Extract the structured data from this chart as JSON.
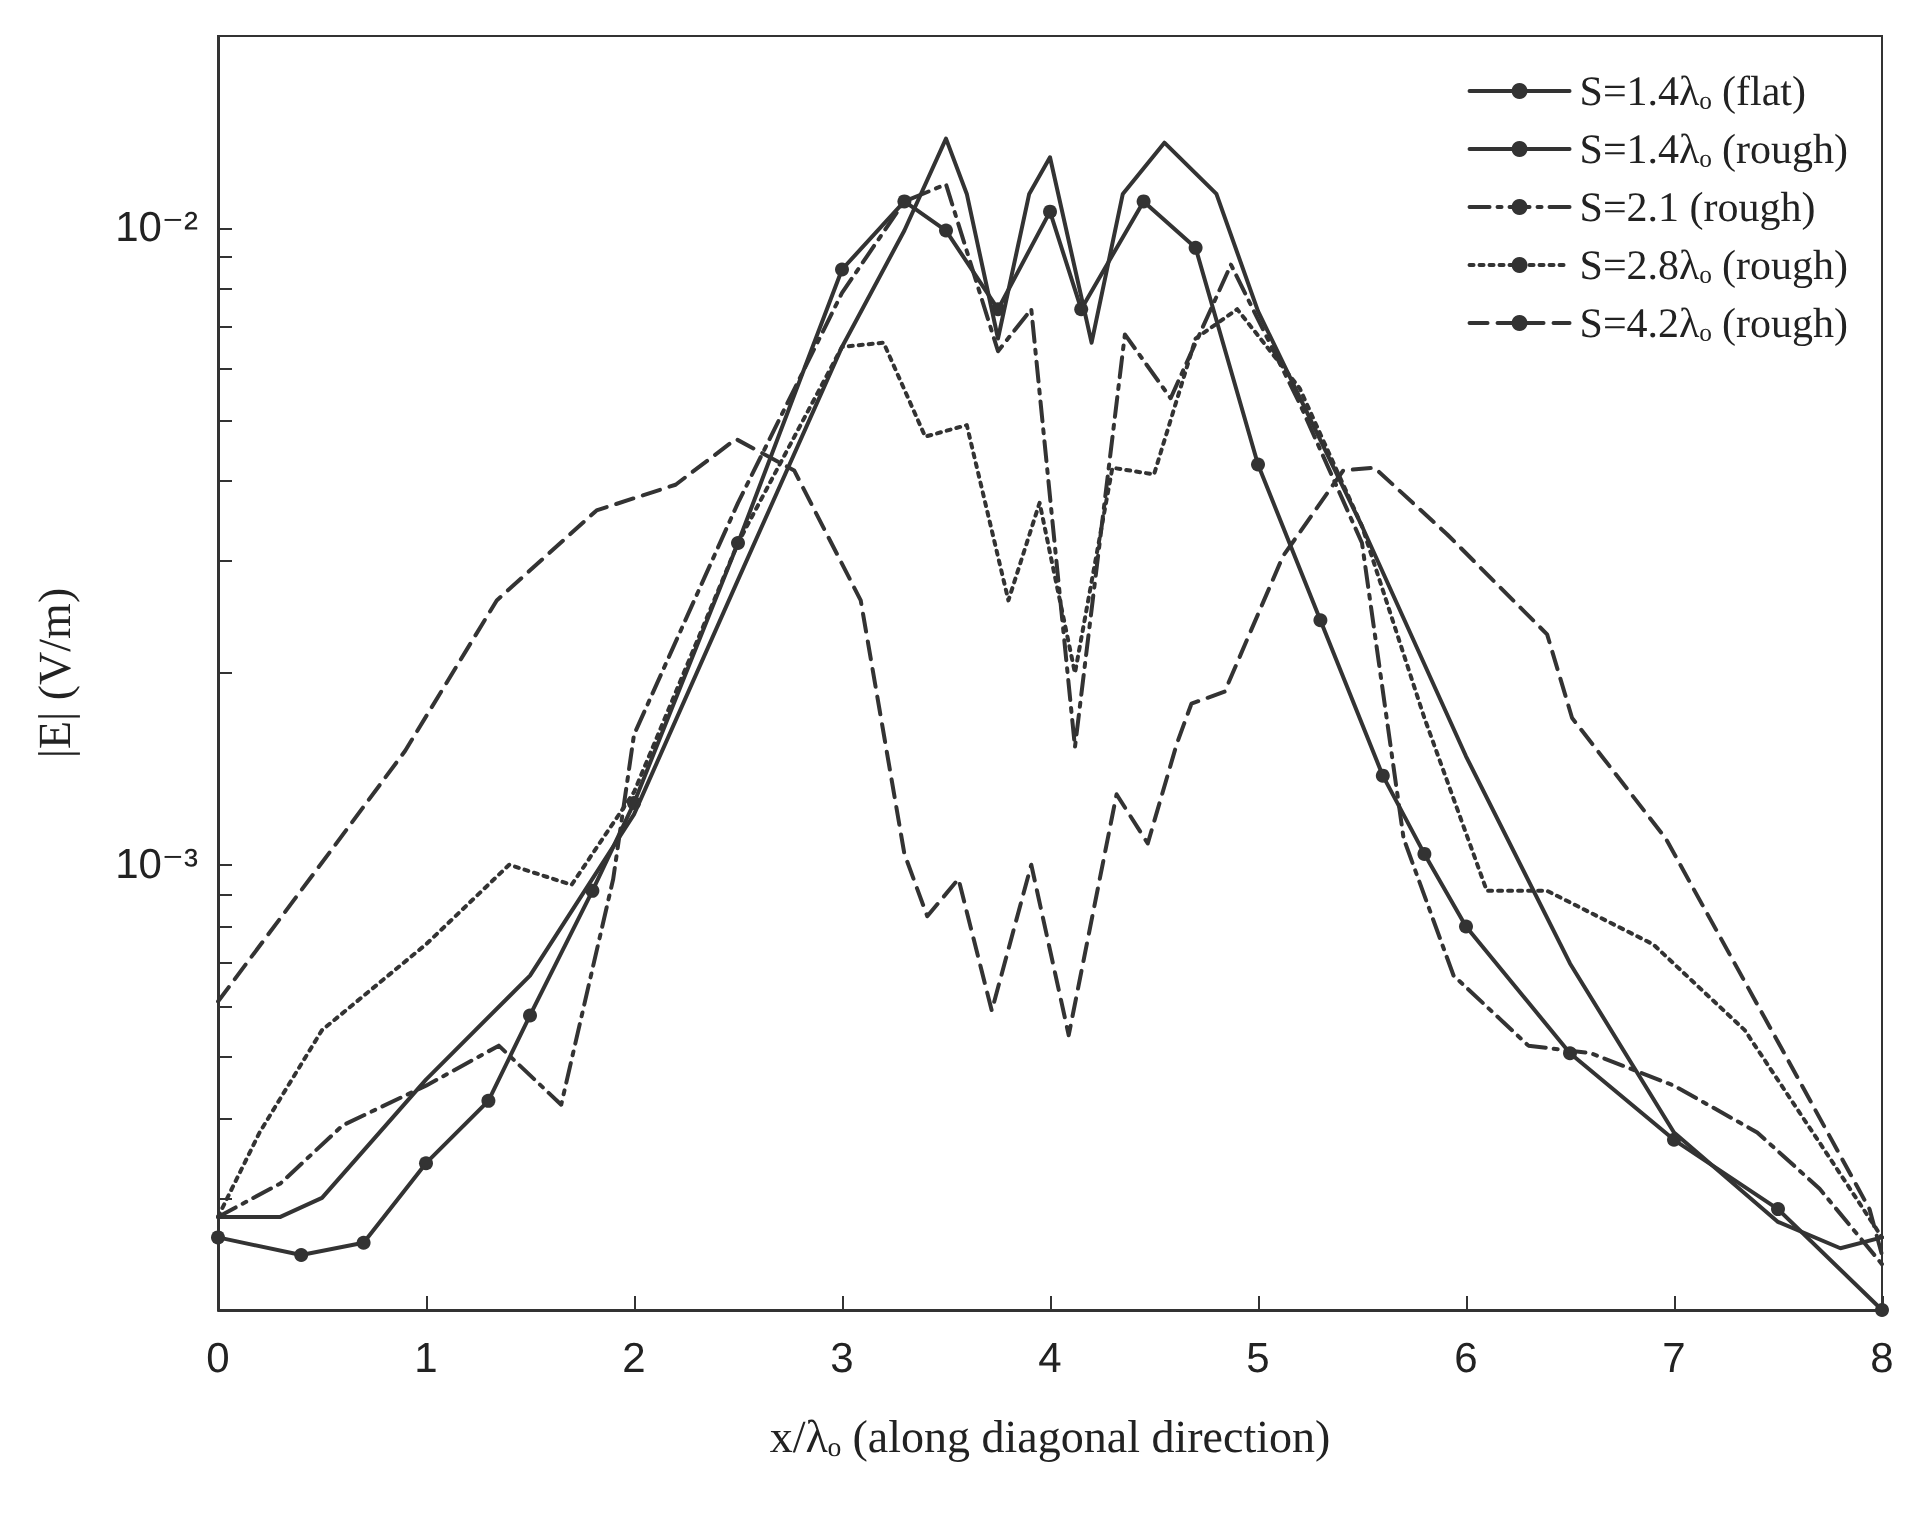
{
  "chart_data": {
    "type": "line",
    "xlabel": "x/λₒ (along diagonal direction)",
    "ylabel": "|E| (V/m)",
    "log": "y",
    "xlim": [
      0,
      8
    ],
    "xticks": [
      0,
      1,
      2,
      3,
      4,
      5,
      6,
      7,
      8
    ],
    "ylim": [
      0.0002,
      0.02
    ],
    "yticks": [
      {
        "value": 0.0002,
        "label": null
      },
      {
        "value": 0.0003,
        "label": null
      },
      {
        "value": 0.0004,
        "label": null
      },
      {
        "value": 0.0005,
        "label": null
      },
      {
        "value": 0.0006,
        "label": null
      },
      {
        "value": 0.0007,
        "label": null
      },
      {
        "value": 0.0008,
        "label": null
      },
      {
        "value": 0.0009,
        "label": null
      },
      {
        "value": 0.001,
        "label": "10⁻³"
      },
      {
        "value": 0.002,
        "label": null
      },
      {
        "value": 0.003,
        "label": null
      },
      {
        "value": 0.004,
        "label": null
      },
      {
        "value": 0.005,
        "label": null
      },
      {
        "value": 0.006,
        "label": null
      },
      {
        "value": 0.007,
        "label": null
      },
      {
        "value": 0.008,
        "label": null
      },
      {
        "value": 0.009,
        "label": null
      },
      {
        "value": 0.01,
        "label": "10⁻²"
      }
    ],
    "grid": false,
    "legend": "top right",
    "series": [
      {
        "name": "S=1.4λₒ (flat)",
        "color": "#333333",
        "line_style": "solid",
        "marker": "none",
        "x": [
          0,
          0.3,
          0.5,
          1,
          1.5,
          2,
          2.5,
          3,
          3.3,
          3.5,
          3.6,
          3.75,
          3.9,
          4,
          4.2,
          4.35,
          4.55,
          4.8,
          5,
          5.5,
          6,
          6.5,
          7,
          7.5,
          7.8,
          8
        ],
        "values": [
          0.00028,
          0.00028,
          0.0003,
          0.00046,
          0.00067,
          0.0012,
          0.0028,
          0.0065,
          0.0099,
          0.0138,
          0.0113,
          0.0067,
          0.0113,
          0.0129,
          0.0066,
          0.0113,
          0.0136,
          0.0113,
          0.0074,
          0.0034,
          0.00148,
          0.0007,
          0.00038,
          0.000275,
          0.00025,
          0.00026
        ]
      },
      {
        "name": "S=1.4λₒ (rough)",
        "color": "#333333",
        "line_style": "solid",
        "marker": "circle",
        "x": [
          0,
          0.4,
          0.7,
          1,
          1.3,
          1.5,
          1.8,
          2,
          2.5,
          3,
          3.3,
          3.5,
          3.75,
          4,
          4.15,
          4.45,
          4.7,
          5,
          5.3,
          5.6,
          5.8,
          6,
          6.5,
          7,
          7.5,
          8
        ],
        "values": [
          0.00026,
          0.000244,
          0.000255,
          0.00034,
          0.000426,
          0.00058,
          0.00091,
          0.00125,
          0.0032,
          0.0086,
          0.011,
          0.0099,
          0.00745,
          0.0106,
          0.00745,
          0.011,
          0.0093,
          0.00425,
          0.00242,
          0.00138,
          0.00104,
          0.0008,
          0.000506,
          0.00037,
          0.000288,
          0.0002
        ]
      },
      {
        "name": "S=2.1 (rough)",
        "color": "#333333",
        "line_style": "dashdot",
        "marker": "none",
        "x": [
          0,
          0.3,
          0.6,
          1,
          1.35,
          1.65,
          1.9,
          2,
          2.5,
          3,
          3.3,
          3.5,
          3.75,
          3.91,
          4.12,
          4.36,
          4.58,
          4.87,
          5.2,
          5.5,
          5.7,
          5.94,
          6.3,
          6.6,
          7,
          7.4,
          7.7,
          8
        ],
        "values": [
          0.00028,
          0.000316,
          0.00039,
          0.00045,
          0.00052,
          0.00042,
          0.00095,
          0.0016,
          0.0037,
          0.0079,
          0.011,
          0.0117,
          0.0064,
          0.00745,
          0.00153,
          0.0068,
          0.0054,
          0.00875,
          0.0053,
          0.0032,
          0.0011,
          0.00067,
          0.00052,
          0.000506,
          0.00045,
          0.00038,
          0.00031,
          0.000236
        ]
      },
      {
        "name": "S=2.8λₒ (rough)",
        "color": "#333333",
        "line_style": "dotted",
        "marker": "none",
        "x": [
          0,
          0.2,
          0.5,
          1,
          1.4,
          1.7,
          2,
          2.5,
          3,
          3.2,
          3.4,
          3.6,
          3.8,
          3.95,
          4.12,
          4.3,
          4.5,
          4.7,
          4.9,
          5.2,
          5.5,
          5.8,
          6.1,
          6.39,
          6.9,
          7.34,
          7.75,
          8
        ],
        "values": [
          0.00028,
          0.00038,
          0.00055,
          0.00075,
          0.001,
          0.00093,
          0.0013,
          0.0032,
          0.0065,
          0.0066,
          0.0047,
          0.0049,
          0.0026,
          0.0037,
          0.002,
          0.0042,
          0.0041,
          0.0067,
          0.00745,
          0.0056,
          0.0034,
          0.0017,
          0.00091,
          0.00091,
          0.00075,
          0.00055,
          0.000346,
          0.00026
        ]
      },
      {
        "name": "S=4.2λₒ (rough)",
        "color": "#333333",
        "line_style": "dashed",
        "marker": "none",
        "x": [
          0,
          0.55,
          0.9,
          1.34,
          1.82,
          2.2,
          2.49,
          2.77,
          3.09,
          3.3,
          3.41,
          3.56,
          3.72,
          3.91,
          4.09,
          4.32,
          4.47,
          4.61,
          4.68,
          4.84,
          5.12,
          5.41,
          5.56,
          5.91,
          6.39,
          6.51,
          6.96,
          7.53,
          7.94,
          8
        ],
        "values": [
          0.00061,
          0.00106,
          0.00151,
          0.0026,
          0.0036,
          0.00395,
          0.00466,
          0.00416,
          0.0026,
          0.00104,
          0.00083,
          0.00095,
          0.00059,
          0.001,
          0.00054,
          0.00129,
          0.00108,
          0.00155,
          0.00179,
          0.00187,
          0.00305,
          0.00416,
          0.0042,
          0.0033,
          0.0023,
          0.0017,
          0.0011,
          0.000506,
          0.000288,
          0.000244
        ]
      }
    ]
  }
}
